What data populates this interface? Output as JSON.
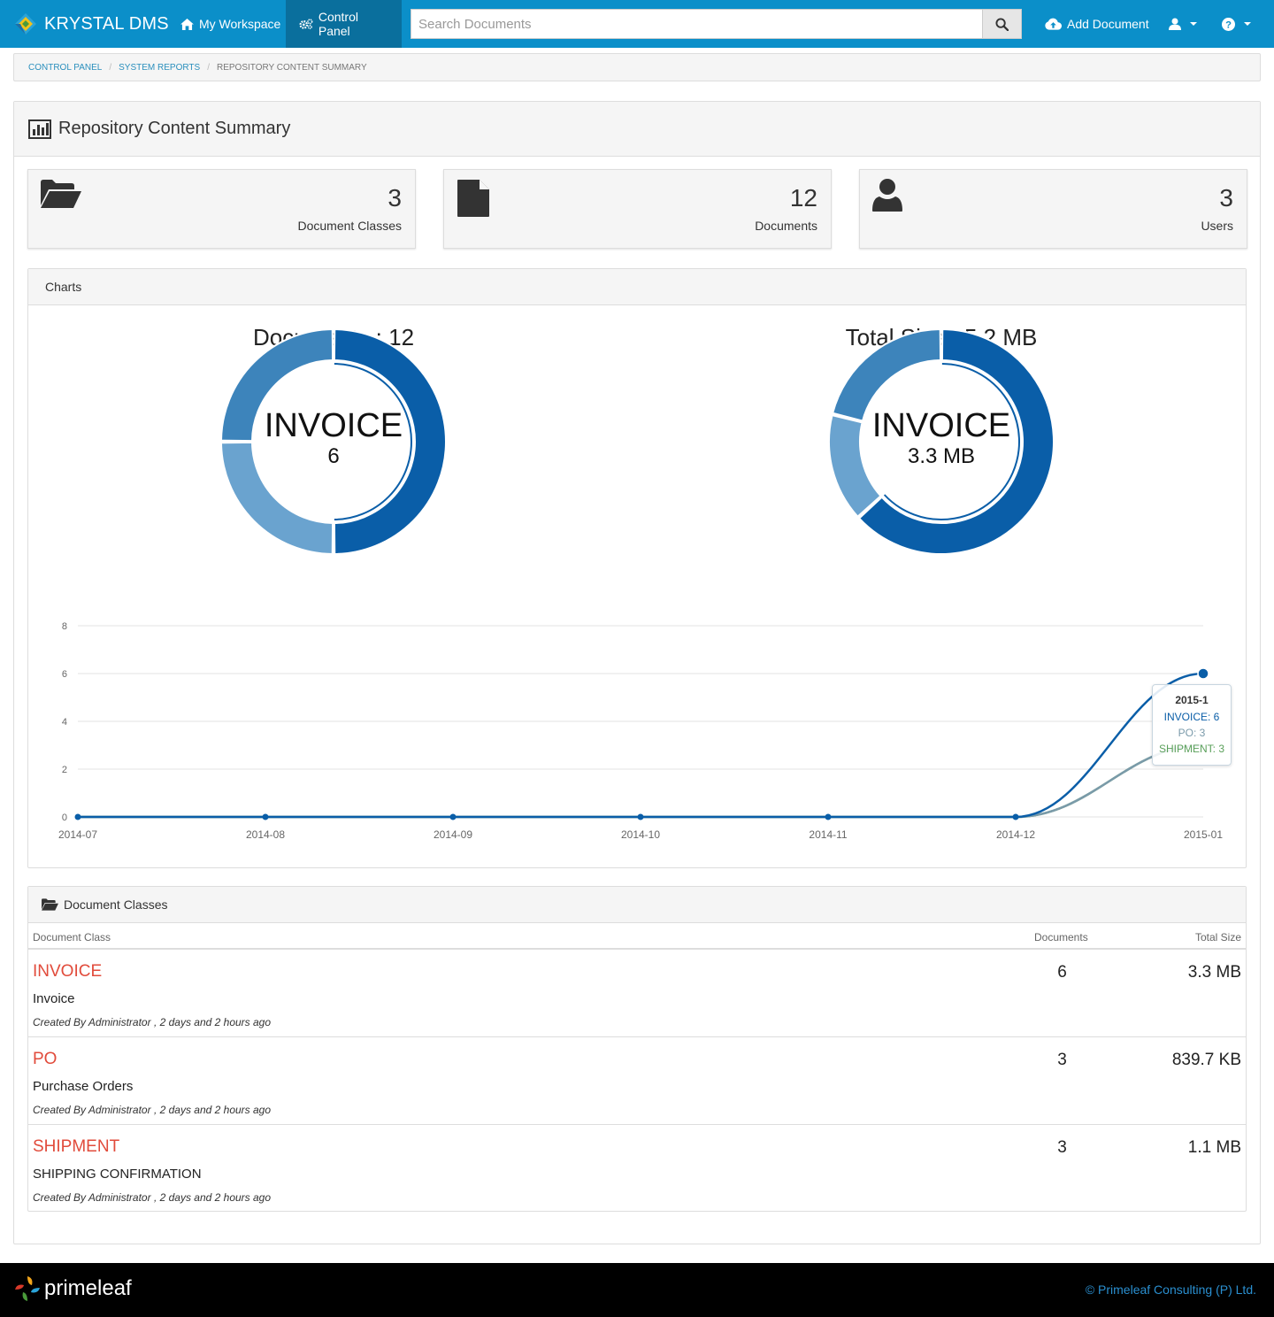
{
  "app": {
    "brand": "KRYSTAL DMS",
    "nav": {
      "workspace": "My Workspace",
      "control_panel": "Control Panel",
      "add_document": "Add Document"
    },
    "search": {
      "placeholder": "Search Documents"
    }
  },
  "breadcrumb": {
    "items": [
      "CONTROL PANEL",
      "SYSTEM REPORTS"
    ],
    "current": "REPOSITORY CONTENT SUMMARY"
  },
  "page": {
    "title": "Repository Content Summary",
    "stats": [
      {
        "icon": "folder-open-icon",
        "count": "3",
        "label": "Document Classes"
      },
      {
        "icon": "file-icon",
        "count": "12",
        "label": "Documents"
      },
      {
        "icon": "user-icon",
        "count": "3",
        "label": "Users"
      }
    ]
  },
  "charts_panel": {
    "heading": "Charts",
    "donut_docs": {
      "title": "Documents : 12",
      "center_label": "INVOICE",
      "center_value": "6"
    },
    "donut_size": {
      "title": "Total Size : 5.2 MB",
      "center_label": "INVOICE",
      "center_value": "3.3 MB"
    },
    "tooltip": {
      "title": "2015-1",
      "lines": [
        "INVOICE: 6",
        "PO: 3",
        "SHIPMENT: 3"
      ]
    }
  },
  "chart_data": [
    {
      "type": "pie",
      "title": "Documents : 12",
      "categories": [
        "INVOICE",
        "PO",
        "SHIPMENT"
      ],
      "values": [
        6,
        3,
        3
      ],
      "colors": [
        "#0a5ea8",
        "#6aa3cf",
        "#3d84bb"
      ]
    },
    {
      "type": "pie",
      "title": "Total Size : 5.2 MB",
      "categories": [
        "INVOICE",
        "PO",
        "SHIPMENT"
      ],
      "values": [
        3.3,
        0.82,
        1.1
      ],
      "colors": [
        "#0a5ea8",
        "#6aa3cf",
        "#3d84bb"
      ]
    },
    {
      "type": "line",
      "x": [
        "2014-07",
        "2014-08",
        "2014-09",
        "2014-10",
        "2014-11",
        "2014-12",
        "2015-01"
      ],
      "ylim": [
        0,
        8
      ],
      "yticks": [
        0,
        2,
        4,
        6,
        8
      ],
      "grid": true,
      "series": [
        {
          "name": "INVOICE",
          "values": [
            0,
            0,
            0,
            0,
            0,
            0,
            6
          ],
          "color": "#0a5ea8"
        },
        {
          "name": "PO",
          "values": [
            0,
            0,
            0,
            0,
            0,
            0,
            3
          ],
          "color": "#7a9aaa"
        },
        {
          "name": "SHIPMENT",
          "values": [
            0,
            0,
            0,
            0,
            0,
            0,
            3
          ],
          "color": "#5aa05a"
        }
      ]
    }
  ],
  "classes_panel": {
    "heading": "Document Classes",
    "columns": {
      "name": "Document Class",
      "docs": "Documents",
      "size": "Total Size"
    },
    "rows": [
      {
        "name": "INVOICE",
        "desc": "Invoice",
        "meta": "Created By Administrator , 2 days and 2 hours ago",
        "docs": "6",
        "size": "3.3 MB"
      },
      {
        "name": "PO",
        "desc": "Purchase Orders",
        "meta": "Created By Administrator , 2 days and 2 hours ago",
        "docs": "3",
        "size": "839.7 KB"
      },
      {
        "name": "SHIPMENT",
        "desc": "SHIPPING CONFIRMATION",
        "meta": "Created By Administrator , 2 days and 2 hours ago",
        "docs": "3",
        "size": "1.1 MB"
      }
    ]
  },
  "footer": {
    "logo_text": "primeleaf",
    "copyright": "© Primeleaf Consulting (P) Ltd."
  }
}
